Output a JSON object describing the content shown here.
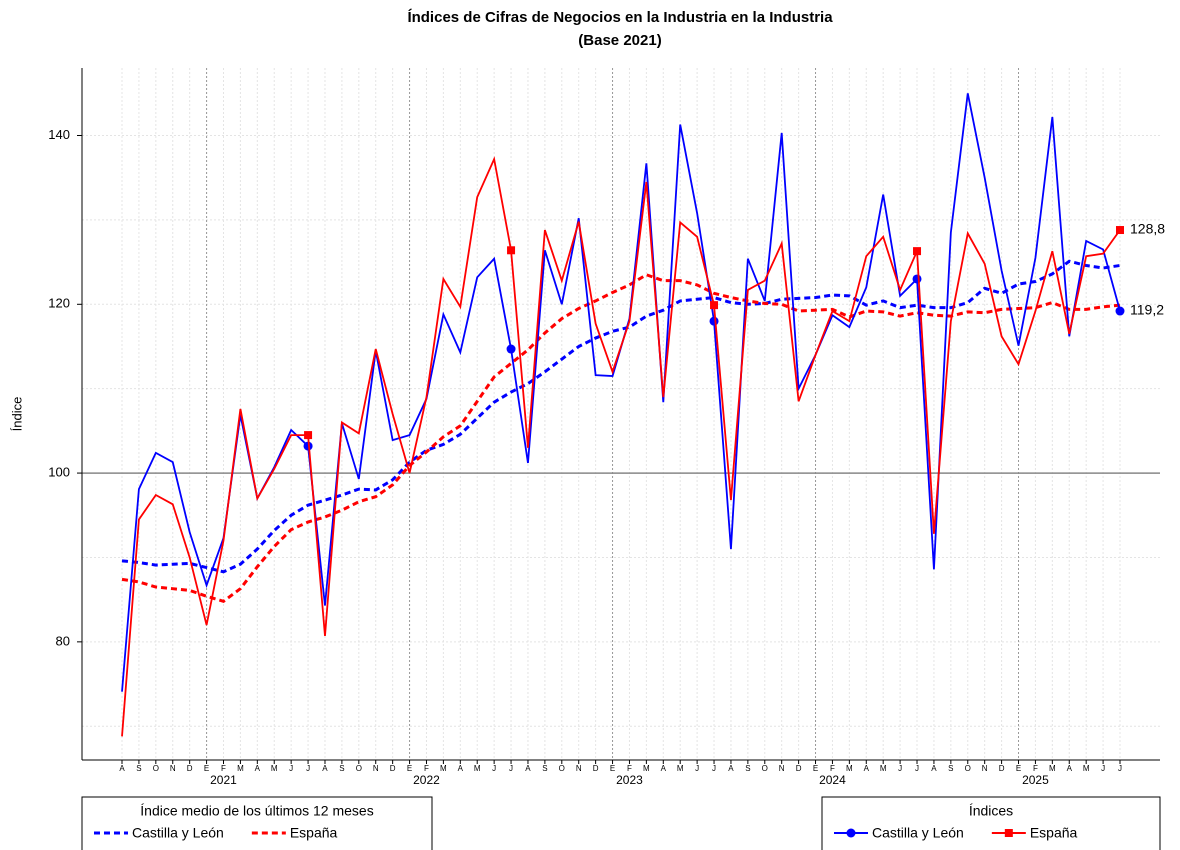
{
  "chart_data": {
    "type": "line",
    "title": "Índices de Cifras de Negocios en la Industria en la Industria",
    "subtitle": "(Base 2021)",
    "y_label": "Índice",
    "categories": [
      "A",
      "S",
      "O",
      "N",
      "D",
      "E",
      "F",
      "M",
      "A",
      "M",
      "J",
      "J",
      "A",
      "S",
      "O",
      "N",
      "D",
      "E",
      "F",
      "M",
      "A",
      "M",
      "J",
      "J",
      "A",
      "S",
      "O",
      "N",
      "D",
      "E",
      "F",
      "M",
      "A",
      "M",
      "J",
      "J",
      "A",
      "S",
      "O",
      "N",
      "D",
      "E",
      "F",
      "M",
      "A",
      "M",
      "J",
      "J",
      "A",
      "S",
      "O",
      "N",
      "D",
      "E",
      "F",
      "M",
      "A",
      "M",
      "J",
      "J"
    ],
    "year_labels": [
      "2021",
      "2022",
      "2023",
      "2024",
      "2025"
    ],
    "ylim": [
      66,
      148
    ],
    "yticks": [
      80,
      100,
      120,
      140
    ],
    "minor_yticks": [
      70,
      90,
      110,
      130
    ],
    "reference_line": 100,
    "grid": true,
    "legends": [
      {
        "title": "Índice medio de los últimos 12 meses",
        "position": "bottom-left"
      },
      {
        "title": "Índices",
        "position": "bottom-right"
      }
    ],
    "series": [
      {
        "name": "Castilla y León",
        "color": "#0000ff",
        "style": "dashed",
        "legend": 0,
        "values": [
          89.6,
          89.4,
          89.1,
          89.2,
          89.3,
          88.8,
          88.3,
          89.2,
          91.0,
          93.2,
          95.0,
          96.2,
          96.8,
          97.4,
          98.1,
          98.0,
          99.2,
          101.3,
          102.7,
          103.4,
          104.6,
          106.5,
          108.4,
          109.6,
          110.6,
          112.0,
          113.5,
          115.0,
          116.0,
          116.8,
          117.3,
          118.6,
          119.3,
          120.4,
          120.6,
          120.8,
          120.2,
          120.0,
          120.1,
          120.6,
          120.7,
          120.8,
          121.1,
          121.0,
          119.9,
          120.4,
          119.6,
          119.9,
          119.6,
          119.6,
          120.2,
          121.9,
          121.3,
          122.4,
          122.7,
          123.6,
          125.1,
          124.6,
          124.3,
          124.6
        ]
      },
      {
        "name": "España",
        "color": "#ff0000",
        "style": "dashed",
        "legend": 0,
        "values": [
          87.4,
          87.1,
          86.5,
          86.3,
          86.1,
          85.4,
          84.8,
          86.3,
          88.9,
          91.3,
          93.3,
          94.2,
          94.8,
          95.6,
          96.6,
          97.2,
          98.6,
          100.9,
          102.5,
          104.3,
          105.6,
          108.5,
          111.4,
          113.0,
          114.6,
          116.6,
          118.3,
          119.5,
          120.4,
          121.4,
          122.3,
          123.5,
          122.8,
          122.8,
          122.3,
          121.3,
          120.8,
          120.4,
          120.1,
          120.0,
          119.2,
          119.3,
          119.4,
          118.5,
          119.2,
          119.1,
          118.6,
          119.0,
          118.7,
          118.6,
          119.1,
          119.0,
          119.4,
          119.5,
          119.6,
          120.2,
          119.4,
          119.4,
          119.7,
          119.9
        ]
      },
      {
        "name": "Castilla y León",
        "color": "#0000ff",
        "style": "solid",
        "marker": "circle",
        "legend": 1,
        "end_label": "119,2",
        "values": [
          74.1,
          98.1,
          102.4,
          101.3,
          93.0,
          86.7,
          92.3,
          106.9,
          97.0,
          100.7,
          105.1,
          103.2,
          84.3,
          105.9,
          99.3,
          114.5,
          103.9,
          104.5,
          108.8,
          118.8,
          114.3,
          123.2,
          125.4,
          114.7,
          101.2,
          126.4,
          120.0,
          130.2,
          111.6,
          111.5,
          118.3,
          136.7,
          108.4,
          141.3,
          130.8,
          118.0,
          91.0,
          125.4,
          120.4,
          140.3,
          110.0,
          114.0,
          118.7,
          117.3,
          122.0,
          133.0,
          121.0,
          123.0,
          88.6,
          128.5,
          145.0,
          135.0,
          124.0,
          115.1,
          125.5,
          142.2,
          116.2,
          127.5,
          126.5,
          119.2
        ]
      },
      {
        "name": "España",
        "color": "#ff0000",
        "style": "solid",
        "marker": "square",
        "legend": 1,
        "end_label": "128,8",
        "values": [
          68.8,
          94.5,
          97.4,
          96.3,
          90.0,
          82.0,
          92.0,
          107.6,
          97.0,
          100.5,
          104.5,
          104.5,
          80.7,
          106.0,
          104.7,
          114.7,
          107.0,
          100.0,
          109.0,
          123.0,
          119.7,
          132.7,
          137.2,
          126.4,
          103.0,
          128.8,
          122.8,
          129.8,
          117.7,
          112.0,
          118.0,
          134.5,
          109.0,
          129.7,
          128.0,
          119.9,
          96.8,
          121.7,
          122.8,
          127.2,
          108.5,
          114.0,
          119.2,
          118.0,
          125.7,
          128.0,
          121.7,
          126.3,
          92.8,
          118.0,
          128.4,
          124.8,
          116.2,
          112.9,
          119.2,
          126.3,
          116.5,
          125.7,
          126.0,
          128.8
        ]
      }
    ]
  }
}
